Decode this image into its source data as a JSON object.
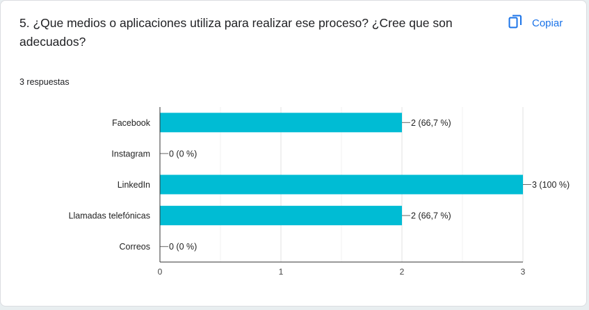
{
  "question": {
    "title": "5. ¿Que medios o aplicaciones utiliza para realizar ese proceso? ¿Cree que son adecuados?",
    "response_count": "3 respuestas"
  },
  "toolbar": {
    "copy_label": "Copiar",
    "copy_icon": "copy-icon"
  },
  "colors": {
    "bar": "#00bcd4",
    "accent": "#1a73e8"
  },
  "chart_data": {
    "type": "bar",
    "orientation": "horizontal",
    "categories": [
      "Facebook",
      "Instagram",
      "LinkedIn",
      "Llamadas telefónicas",
      "Correos"
    ],
    "values": [
      2,
      0,
      3,
      2,
      0
    ],
    "data_labels": [
      "2 (66,7 %)",
      "0 (0 %)",
      "3 (100 %)",
      "2 (66,7 %)",
      "0 (0 %)"
    ],
    "xlim": [
      0,
      3
    ],
    "x_ticks": [
      "0",
      "1",
      "2",
      "3"
    ],
    "grid": true,
    "legend": "none"
  }
}
